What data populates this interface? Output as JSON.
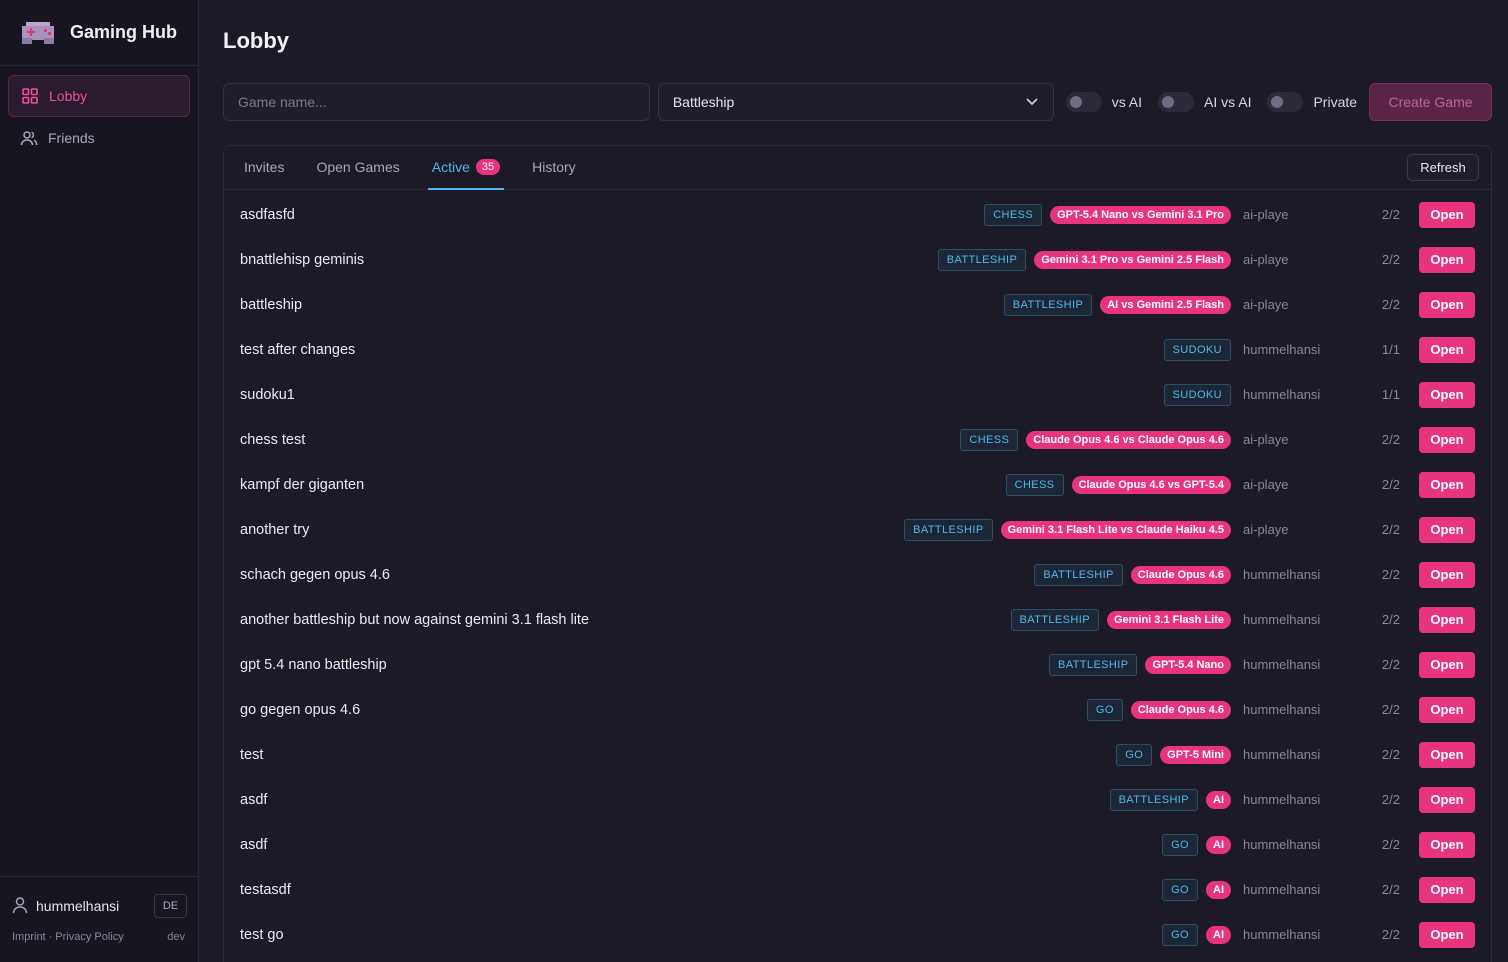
{
  "app": {
    "title": "Gaming Hub"
  },
  "sidebar": {
    "items": [
      {
        "label": "Lobby",
        "icon": "grid-icon",
        "active": true
      },
      {
        "label": "Friends",
        "icon": "users-icon",
        "active": false
      }
    ],
    "user": {
      "name": "hummelhansi",
      "lang": "DE"
    },
    "footer": {
      "imprint": "Imprint",
      "separator": "·",
      "privacy": "Privacy Policy",
      "env": "dev"
    }
  },
  "page": {
    "title": "Lobby"
  },
  "toolbar": {
    "game_name_placeholder": "Game name...",
    "game_type": "Battleship",
    "toggle_vs_ai": "vs AI",
    "toggle_ai_vs_ai": "AI vs AI",
    "toggle_private": "Private",
    "create_label": "Create Game"
  },
  "tabs": [
    {
      "label": "Invites",
      "active": false
    },
    {
      "label": "Open Games",
      "active": false
    },
    {
      "label": "Active",
      "active": true,
      "count": "35"
    },
    {
      "label": "History",
      "active": false
    }
  ],
  "refresh_label": "Refresh",
  "open_label": "Open",
  "games": [
    {
      "name": "asdfasfd",
      "type": "CHESS",
      "ai": "GPT-5.4 Nano vs Gemini 3.1 Pro",
      "creator": "ai-playe",
      "players": "2/2"
    },
    {
      "name": "bnattlehisp geminis",
      "type": "BATTLESHIP",
      "ai": "Gemini 3.1 Pro vs Gemini 2.5 Flash",
      "creator": "ai-playe",
      "players": "2/2"
    },
    {
      "name": "battleship",
      "type": "BATTLESHIP",
      "ai": "AI vs Gemini 2.5 Flash",
      "creator": "ai-playe",
      "players": "2/2"
    },
    {
      "name": "test after changes",
      "type": "SUDOKU",
      "ai": "",
      "creator": "hummelhansi",
      "players": "1/1"
    },
    {
      "name": "sudoku1",
      "type": "SUDOKU",
      "ai": "",
      "creator": "hummelhansi",
      "players": "1/1"
    },
    {
      "name": "chess test",
      "type": "CHESS",
      "ai": "Claude Opus 4.6 vs Claude Opus 4.6",
      "creator": "ai-playe",
      "players": "2/2"
    },
    {
      "name": "kampf der giganten",
      "type": "CHESS",
      "ai": "Claude Opus 4.6 vs GPT-5.4",
      "creator": "ai-playe",
      "players": "2/2"
    },
    {
      "name": "another try",
      "type": "BATTLESHIP",
      "ai": "Gemini 3.1 Flash Lite vs Claude Haiku 4.5",
      "creator": "ai-playe",
      "players": "2/2"
    },
    {
      "name": "schach gegen opus 4.6",
      "type": "BATTLESHIP",
      "ai": "Claude Opus 4.6",
      "creator": "hummelhansi",
      "players": "2/2"
    },
    {
      "name": "another battleship but now against gemini 3.1 flash lite",
      "type": "BATTLESHIP",
      "ai": "Gemini 3.1 Flash Lite",
      "creator": "hummelhansi",
      "players": "2/2"
    },
    {
      "name": "gpt 5.4 nano battleship",
      "type": "BATTLESHIP",
      "ai": "GPT-5.4 Nano",
      "creator": "hummelhansi",
      "players": "2/2"
    },
    {
      "name": "go gegen opus 4.6",
      "type": "GO",
      "ai": "Claude Opus 4.6",
      "creator": "hummelhansi",
      "players": "2/2"
    },
    {
      "name": "test",
      "type": "GO",
      "ai": "GPT-5 Mini",
      "creator": "hummelhansi",
      "players": "2/2"
    },
    {
      "name": "asdf",
      "type": "BATTLESHIP",
      "ai": "AI",
      "creator": "hummelhansi",
      "players": "2/2"
    },
    {
      "name": "asdf",
      "type": "GO",
      "ai": "AI",
      "creator": "hummelhansi",
      "players": "2/2"
    },
    {
      "name": "testasdf",
      "type": "GO",
      "ai": "AI",
      "creator": "hummelhansi",
      "players": "2/2"
    },
    {
      "name": "test go",
      "type": "GO",
      "ai": "AI",
      "creator": "hummelhansi",
      "players": "2/2"
    }
  ],
  "colors": {
    "accent": "#e8347f",
    "tab_active": "#4fb8ee",
    "background": "#1c1a26"
  }
}
